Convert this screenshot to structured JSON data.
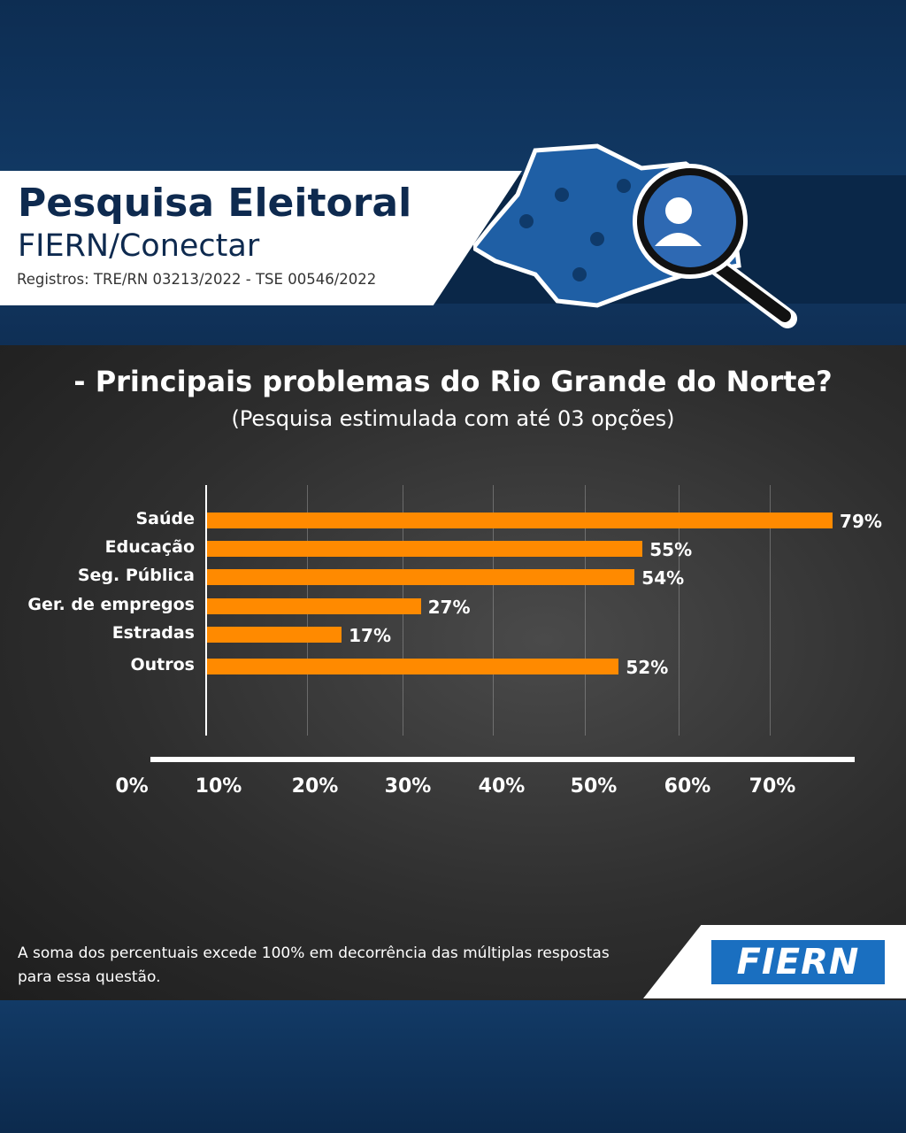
{
  "header": {
    "title": "Pesquisa Eleitoral",
    "subtitle": "FIERN/Conectar",
    "registros": "Registros: TRE/RN 03213/2022 - TSE 00546/2022"
  },
  "question": {
    "title": "- Principais problemas do Rio Grande do Norte?",
    "subtitle": "(Pesquisa estimulada com até 03 opções)"
  },
  "chart_data": {
    "type": "bar",
    "orientation": "horizontal",
    "title": "- Principais problemas do Rio Grande do Norte?",
    "categories": [
      "Saúde",
      "Educação",
      "Seg. Pública",
      "Ger. de empregos",
      "Estradas",
      "Outros"
    ],
    "values": [
      79,
      55,
      54,
      27,
      17,
      52
    ],
    "value_labels": [
      "79%",
      "55%",
      "54%",
      "27%",
      "17%",
      "52%"
    ],
    "x_ticks": [
      "0%",
      "10%",
      "20%",
      "30%",
      "40%",
      "50%",
      "60%",
      "70%"
    ],
    "xlim": [
      0,
      80
    ],
    "grid": true,
    "bar_color": "#ff8a00"
  },
  "footer": {
    "note": "A soma dos percentuais excede 100% em decorrência das múltiplas respostas para essa questão.",
    "logo": "FIERN"
  }
}
